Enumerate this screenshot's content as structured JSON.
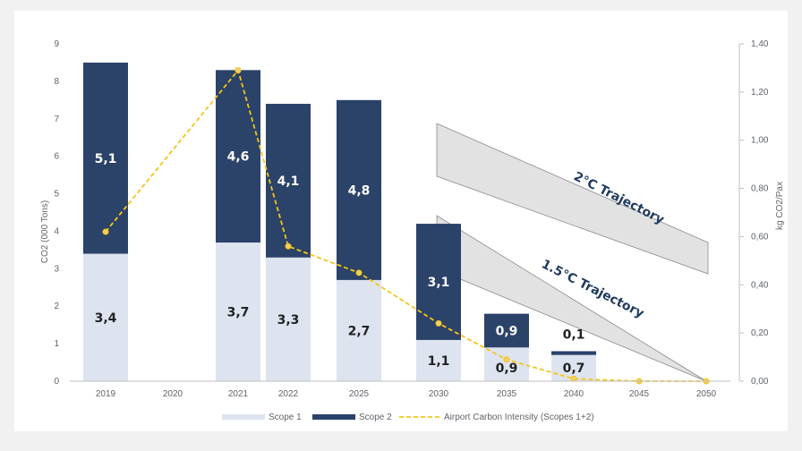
{
  "chart_data": {
    "type": "bar",
    "categories": [
      "2019",
      "2020",
      "2021",
      "2022",
      "2025",
      "2030",
      "2035",
      "2040",
      "2045",
      "2050"
    ],
    "ylabel": "CO2 (000 Tons)",
    "y2label": "kg CO2/Pax",
    "ylim": [
      0,
      9
    ],
    "y2lim": [
      0,
      1.4
    ],
    "yticks": [
      "0",
      "1",
      "2",
      "3",
      "4",
      "5",
      "6",
      "7",
      "8",
      "9"
    ],
    "y2ticks": [
      "0,00",
      "0,20",
      "0,40",
      "0,60",
      "0,80",
      "1,00",
      "1,20",
      "1,40"
    ],
    "stacked": true,
    "grid": false,
    "legend_position": "bottom",
    "series": [
      {
        "name": "Scope 1",
        "type": "bar",
        "color": "#dde4ef",
        "values": [
          3.4,
          null,
          3.7,
          3.3,
          2.7,
          1.1,
          0.9,
          0.7,
          null,
          null
        ],
        "labels": [
          "3,4",
          "",
          "3,7",
          "3,3",
          "2,7",
          "1,1",
          "0,9",
          "0,7",
          "",
          ""
        ]
      },
      {
        "name": "Scope 2",
        "type": "bar",
        "color": "#2b4269",
        "values": [
          5.1,
          null,
          4.6,
          4.1,
          4.8,
          3.1,
          0.9,
          0.1,
          null,
          null
        ],
        "labels": [
          "5,1",
          "",
          "4,6",
          "4,1",
          "4,8",
          "3,1",
          "0,9",
          "0,1",
          "",
          ""
        ]
      },
      {
        "name": "Airport Carbon Intensity (Scopes 1+2)",
        "type": "line",
        "axis": "right",
        "color": "#f5c518",
        "style": "dashed",
        "values": [
          0.62,
          null,
          1.29,
          0.56,
          0.45,
          0.24,
          0.09,
          0.01,
          0.0,
          0.0
        ]
      }
    ],
    "annotations": [
      {
        "text": "2°C Trajectory"
      },
      {
        "text": "1.5°C Trajectory"
      }
    ]
  }
}
